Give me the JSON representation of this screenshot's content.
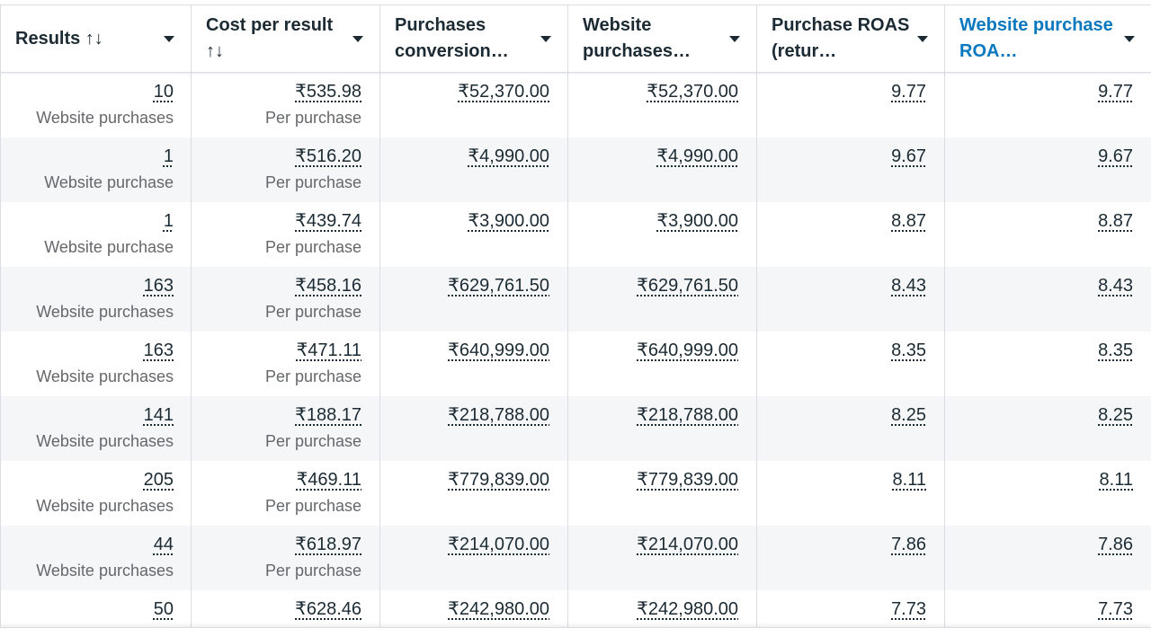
{
  "columns": [
    {
      "label": "Results ↑↓",
      "highlighted": false
    },
    {
      "label": "Cost per result ↑↓",
      "highlighted": false
    },
    {
      "label": "Purchases conversion…",
      "highlighted": false
    },
    {
      "label": "Website purchases…",
      "highlighted": false
    },
    {
      "label": "Purchase ROAS (retur…",
      "highlighted": false
    },
    {
      "label": "Website purchase ROA…",
      "highlighted": true
    }
  ],
  "header_accent_color": "#0a78be",
  "rows": [
    {
      "results": "10",
      "results_sub": "Website purchases",
      "cost": "₹535.98",
      "cost_sub": "Per purchase",
      "conv": "₹52,370.00",
      "web": "₹52,370.00",
      "roas": "9.77",
      "web_roas": "9.77"
    },
    {
      "results": "1",
      "results_sub": "Website purchase",
      "cost": "₹516.20",
      "cost_sub": "Per purchase",
      "conv": "₹4,990.00",
      "web": "₹4,990.00",
      "roas": "9.67",
      "web_roas": "9.67"
    },
    {
      "results": "1",
      "results_sub": "Website purchase",
      "cost": "₹439.74",
      "cost_sub": "Per purchase",
      "conv": "₹3,900.00",
      "web": "₹3,900.00",
      "roas": "8.87",
      "web_roas": "8.87"
    },
    {
      "results": "163",
      "results_sub": "Website purchases",
      "cost": "₹458.16",
      "cost_sub": "Per purchase",
      "conv": "₹629,761.50",
      "web": "₹629,761.50",
      "roas": "8.43",
      "web_roas": "8.43"
    },
    {
      "results": "163",
      "results_sub": "Website purchases",
      "cost": "₹471.11",
      "cost_sub": "Per purchase",
      "conv": "₹640,999.00",
      "web": "₹640,999.00",
      "roas": "8.35",
      "web_roas": "8.35"
    },
    {
      "results": "141",
      "results_sub": "Website purchases",
      "cost": "₹188.17",
      "cost_sub": "Per purchase",
      "conv": "₹218,788.00",
      "web": "₹218,788.00",
      "roas": "8.25",
      "web_roas": "8.25"
    },
    {
      "results": "205",
      "results_sub": "Website purchases",
      "cost": "₹469.11",
      "cost_sub": "Per purchase",
      "conv": "₹779,839.00",
      "web": "₹779,839.00",
      "roas": "8.11",
      "web_roas": "8.11"
    },
    {
      "results": "44",
      "results_sub": "Website purchases",
      "cost": "₹618.97",
      "cost_sub": "Per purchase",
      "conv": "₹214,070.00",
      "web": "₹214,070.00",
      "roas": "7.86",
      "web_roas": "7.86"
    },
    {
      "results": "50",
      "results_sub": "Website purchases",
      "cost": "₹628.46",
      "cost_sub": "Per purchase",
      "conv": "₹242,980.00",
      "web": "₹242,980.00",
      "roas": "7.73",
      "web_roas": "7.73"
    }
  ]
}
